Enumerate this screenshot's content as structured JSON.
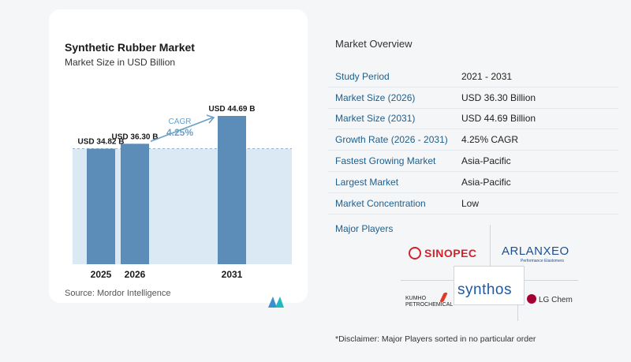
{
  "chart_card": {
    "title": "Synthetic Rubber Market",
    "subtitle": "Market Size in USD Billion",
    "source": "Source:  Mordor Intelligence"
  },
  "chart_data": {
    "type": "bar",
    "categories": [
      "2025",
      "2026",
      "2031"
    ],
    "values": [
      34.82,
      36.3,
      44.69
    ],
    "value_labels": [
      "USD 34.82 B",
      "USD 36.30 B",
      "USD 44.69 B"
    ],
    "title": "Synthetic Rubber Market",
    "subtitle": "Market Size in USD Billion",
    "cagr_label": "CAGR",
    "cagr_value": "4.25%",
    "ylim": [
      0,
      44.69
    ],
    "grid": false,
    "bar_color": "#5b8db8",
    "highlight_color": "#dbe9f4",
    "arrow_color": "#6aa0c7"
  },
  "overview": {
    "title": "Market Overview",
    "rows": [
      {
        "key": "Study Period",
        "value": "2021 - 2031"
      },
      {
        "key": "Market Size (2026)",
        "value": "USD 36.30 Billion"
      },
      {
        "key": "Market Size (2031)",
        "value": "USD 44.69 Billion"
      },
      {
        "key": "Growth Rate (2026 - 2031)",
        "value": "4.25% CAGR"
      },
      {
        "key": "Fastest Growing Market",
        "value": "Asia-Pacific"
      },
      {
        "key": "Largest Market",
        "value": "Asia-Pacific"
      },
      {
        "key": "Market Concentration",
        "value": "Low"
      }
    ]
  },
  "players": {
    "title": "Major Players",
    "logos": [
      "SINOPEC",
      "ARLANXEO",
      "Performance Elastomers",
      "synthos",
      "KUMHO",
      "PETROCHEMICAL",
      "LG Chem"
    ]
  },
  "disclaimer": "*Disclaimer: Major Players sorted in no particular order"
}
